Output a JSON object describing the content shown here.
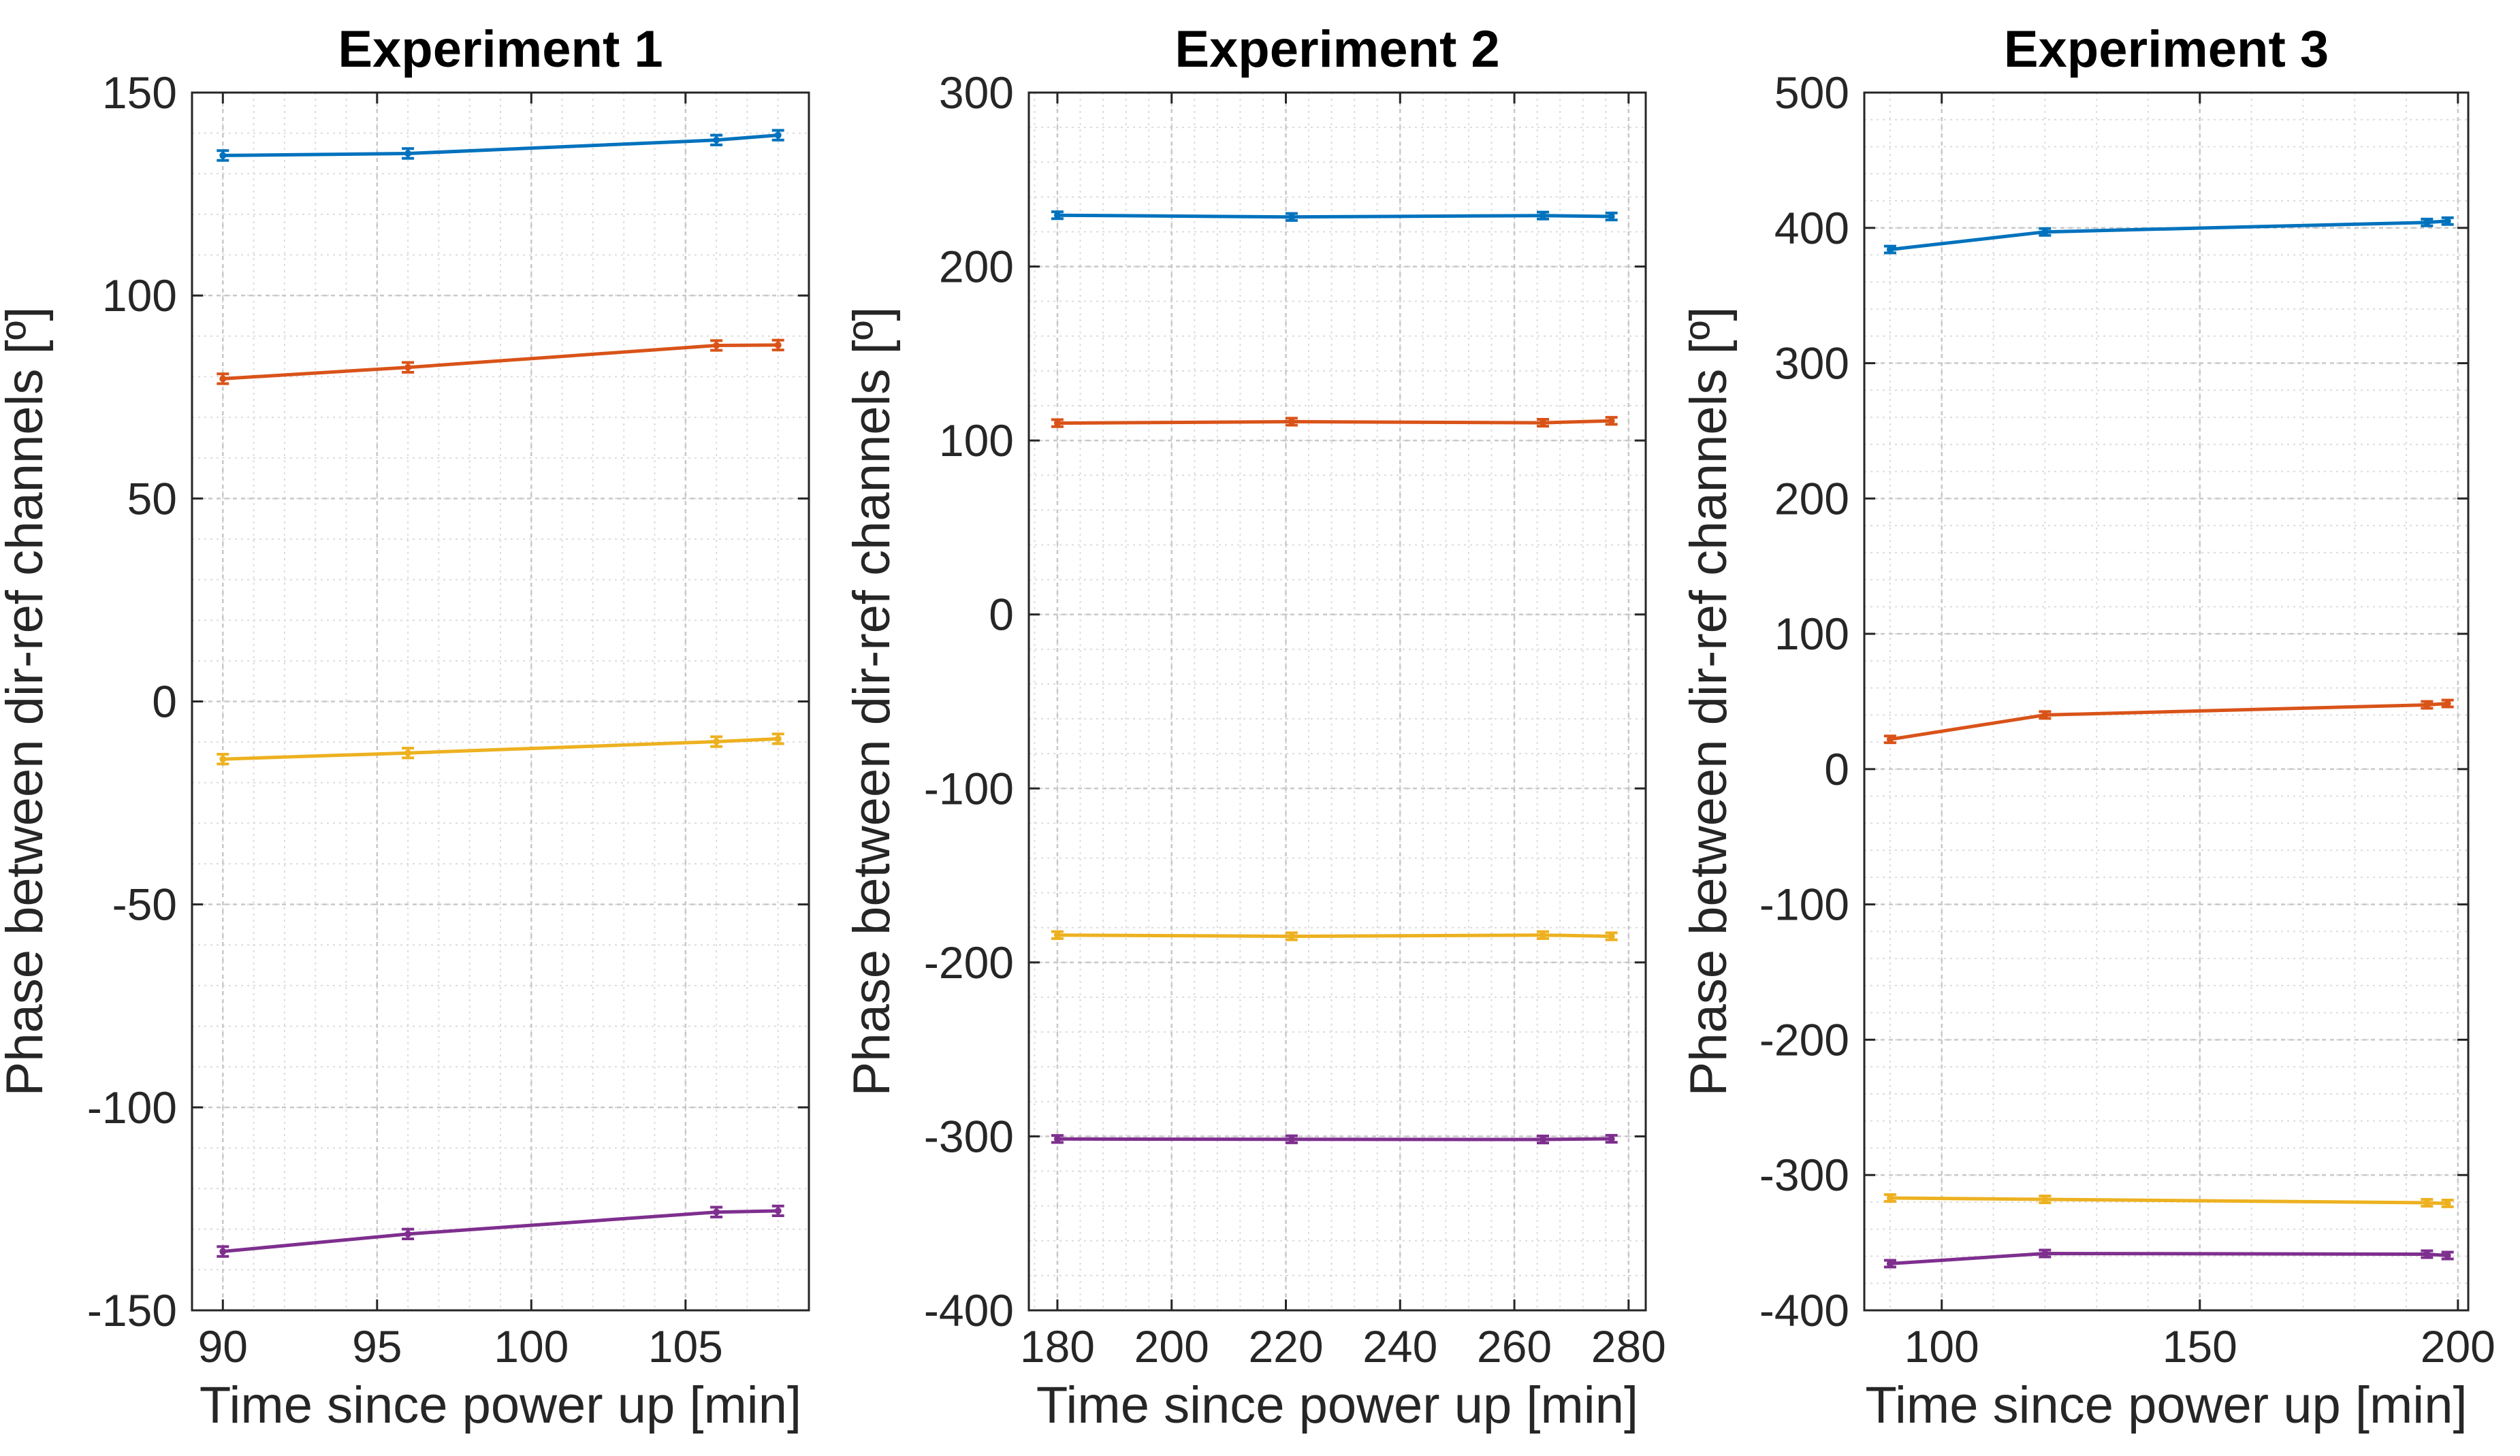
{
  "chart_data": [
    {
      "type": "line",
      "title": "Experiment 1",
      "xlabel": "Time since power up [min]",
      "ylabel": "Phase between dir-ref channels [º]",
      "xlim": [
        89,
        109
      ],
      "ylim": [
        -150,
        150
      ],
      "xticks": [
        90,
        95,
        100,
        105
      ],
      "xtick_labels": [
        "90",
        "95",
        "100",
        "105"
      ],
      "yticks": [
        -150,
        -100,
        -50,
        0,
        50,
        100,
        150
      ],
      "ytick_labels": [
        "-150",
        "-100",
        "-50",
        "0",
        "50",
        "100",
        "150"
      ],
      "grid": true,
      "x": [
        90,
        96,
        106,
        108
      ],
      "series": [
        {
          "color": "#0072BD",
          "values": [
            134.5,
            135,
            138.3,
            139.5
          ],
          "error": 1.2
        },
        {
          "color": "#D95319",
          "values": [
            79.5,
            82.3,
            87.7,
            87.8
          ],
          "error": 1.2
        },
        {
          "color": "#EDB120",
          "values": [
            -14.2,
            -12.7,
            -9.9,
            -9.2
          ],
          "error": 1.2
        },
        {
          "color": "#7E2F8E",
          "values": [
            -135.5,
            -131.2,
            -125.8,
            -125.5
          ],
          "error": 1.2
        }
      ]
    },
    {
      "type": "line",
      "title": "Experiment 2",
      "xlabel": "Time since power up [min]",
      "ylabel": "Phase between dir-ref channels [º]",
      "xlim": [
        175,
        283
      ],
      "ylim": [
        -400,
        300
      ],
      "xticks": [
        180,
        200,
        220,
        240,
        260,
        280
      ],
      "xtick_labels": [
        "180",
        "200",
        "220",
        "240",
        "260",
        "280"
      ],
      "yticks": [
        -400,
        -300,
        -200,
        -100,
        0,
        100,
        200,
        300
      ],
      "ytick_labels": [
        "-400",
        "-300",
        "-200",
        "-100",
        "0",
        "100",
        "200",
        "300"
      ],
      "grid": true,
      "x": [
        180,
        221,
        265,
        277
      ],
      "series": [
        {
          "color": "#0072BD",
          "values": [
            229.5,
            228.5,
            229.3,
            228.8
          ],
          "error": 2
        },
        {
          "color": "#D95319",
          "values": [
            110,
            110.8,
            110.2,
            111.3
          ],
          "error": 2
        },
        {
          "color": "#EDB120",
          "values": [
            -184.3,
            -185,
            -184.3,
            -185
          ],
          "error": 2
        },
        {
          "color": "#7E2F8E",
          "values": [
            -301.5,
            -301.7,
            -301.8,
            -301.4
          ],
          "error": 2
        }
      ]
    },
    {
      "type": "line",
      "title": "Experiment 3",
      "xlabel": "Time since power up [min]",
      "ylabel": "Phase between dir-ref channels [º]",
      "xlim": [
        85,
        202
      ],
      "ylim": [
        -400,
        500
      ],
      "xticks": [
        100,
        150,
        200
      ],
      "xtick_labels": [
        "100",
        "150",
        "200"
      ],
      "yticks": [
        -400,
        -300,
        -200,
        -100,
        0,
        100,
        200,
        300,
        400,
        500
      ],
      "ytick_labels": [
        "-400",
        "-300",
        "-200",
        "-100",
        "0",
        "100",
        "200",
        "300",
        "400",
        "500"
      ],
      "grid": true,
      "x": [
        90,
        120,
        194,
        198
      ],
      "series": [
        {
          "color": "#0072BD",
          "values": [
            384,
            397,
            404,
            405
          ],
          "error": 2.5
        },
        {
          "color": "#D95319",
          "values": [
            22,
            40,
            47.5,
            48.5
          ],
          "error": 2.5
        },
        {
          "color": "#EDB120",
          "values": [
            -317,
            -318,
            -320.5,
            -321
          ],
          "error": 2.5
        },
        {
          "color": "#7E2F8E",
          "values": [
            -365.5,
            -358,
            -358.5,
            -359.5
          ],
          "error": 2.5
        }
      ]
    }
  ]
}
